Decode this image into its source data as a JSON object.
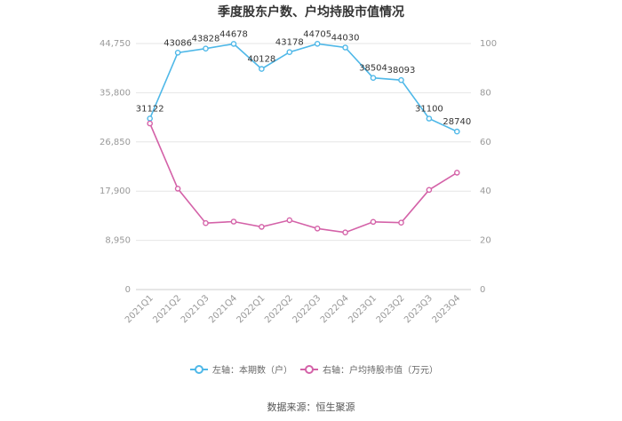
{
  "chart_data": {
    "type": "line",
    "title": "季度股东户数、户均持股市值情况",
    "categories": [
      "2021Q1",
      "2021Q2",
      "2021Q3",
      "2021Q4",
      "2022Q1",
      "2022Q2",
      "2022Q3",
      "2022Q4",
      "2023Q1",
      "2023Q2",
      "2023Q3",
      "2023Q4"
    ],
    "y_left": {
      "ylim": [
        0,
        44750
      ],
      "ticks": [
        "0",
        "8,950",
        "17,900",
        "26,850",
        "35,800",
        "44,750"
      ],
      "tick_values": [
        0,
        8950,
        17900,
        26850,
        35800,
        44750
      ]
    },
    "y_right": {
      "ylim": [
        0,
        100
      ],
      "ticks": [
        "0",
        "20",
        "40",
        "60",
        "80",
        "100"
      ],
      "tick_values": [
        0,
        20,
        40,
        60,
        80,
        100
      ]
    },
    "series": [
      {
        "name": "左轴：本期数（户）",
        "axis": "left",
        "color": "#4fb8e8",
        "values": [
          31122,
          43086,
          43828,
          44678,
          40128,
          43178,
          44705,
          44030,
          38504,
          38093,
          31100,
          28740
        ],
        "labels": [
          "31122",
          "43086",
          "43828",
          "44678",
          "40128",
          "43178",
          "44705",
          "44030",
          "38504",
          "38093",
          "31100",
          "28740"
        ]
      },
      {
        "name": "右轴：户均持股市值（万元）",
        "axis": "right",
        "color": "#d462a8",
        "values": [
          67.5,
          41,
          27,
          27.6,
          25.5,
          28.2,
          24.8,
          23.2,
          27.5,
          27.2,
          40.5,
          47.5
        ]
      }
    ],
    "grid": true,
    "legend": "bottom-center",
    "source": "数据来源：恒生聚源"
  }
}
